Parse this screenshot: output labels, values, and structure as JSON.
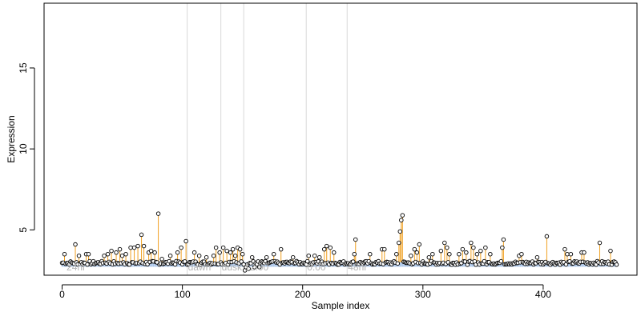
{
  "chart_data": {
    "type": "scatter",
    "title": "",
    "xlabel": "Sample index",
    "ylabel": "Expression",
    "xlim": [
      -15,
      478
    ],
    "ylim": [
      2.2,
      19
    ],
    "x_ticks": [
      0,
      100,
      200,
      300,
      400
    ],
    "y_ticks": [
      5,
      10,
      15
    ],
    "grid": false,
    "colors": {
      "baseline": "#a8c4e8",
      "stem": "#f0a020",
      "point_fill": "#ffffff",
      "point_edge": "#000000",
      "marker_line": "#d9d9d9"
    },
    "baseline_value": 3.0,
    "markers": [
      {
        "x": 3,
        "label": "24hr",
        "line": false
      },
      {
        "x": 104,
        "label": "dawn",
        "line": true
      },
      {
        "x": 132,
        "label": "dusk",
        "line": true
      },
      {
        "x": 151,
        "label": "12:00",
        "line": true
      },
      {
        "x": 203,
        "label": "0:00",
        "line": true
      },
      {
        "x": 237,
        "label": "48hr",
        "line": true
      }
    ],
    "highlights": [
      {
        "x": 2,
        "y": 3.5
      },
      {
        "x": 11,
        "y": 4.1
      },
      {
        "x": 14,
        "y": 3.4
      },
      {
        "x": 20,
        "y": 3.5
      },
      {
        "x": 22,
        "y": 3.5
      },
      {
        "x": 35,
        "y": 3.4
      },
      {
        "x": 38,
        "y": 3.5
      },
      {
        "x": 41,
        "y": 3.7
      },
      {
        "x": 45,
        "y": 3.6
      },
      {
        "x": 48,
        "y": 3.8
      },
      {
        "x": 50,
        "y": 3.4
      },
      {
        "x": 53,
        "y": 3.5
      },
      {
        "x": 57,
        "y": 3.9
      },
      {
        "x": 60,
        "y": 3.9
      },
      {
        "x": 63,
        "y": 4.0
      },
      {
        "x": 66,
        "y": 4.7
      },
      {
        "x": 68,
        "y": 4.0
      },
      {
        "x": 72,
        "y": 3.6
      },
      {
        "x": 74,
        "y": 3.7
      },
      {
        "x": 77,
        "y": 3.6
      },
      {
        "x": 80,
        "y": 6.0
      },
      {
        "x": 83,
        "y": 3.2
      },
      {
        "x": 90,
        "y": 3.4
      },
      {
        "x": 96,
        "y": 3.6
      },
      {
        "x": 99,
        "y": 3.9
      },
      {
        "x": 103,
        "y": 4.3
      },
      {
        "x": 110,
        "y": 3.6
      },
      {
        "x": 114,
        "y": 3.4
      },
      {
        "x": 120,
        "y": 3.3
      },
      {
        "x": 126,
        "y": 3.4
      },
      {
        "x": 128,
        "y": 3.9
      },
      {
        "x": 131,
        "y": 3.6
      },
      {
        "x": 134,
        "y": 3.9
      },
      {
        "x": 137,
        "y": 3.7
      },
      {
        "x": 140,
        "y": 3.6
      },
      {
        "x": 142,
        "y": 3.8
      },
      {
        "x": 144,
        "y": 3.4
      },
      {
        "x": 146,
        "y": 3.9
      },
      {
        "x": 148,
        "y": 3.8
      },
      {
        "x": 150,
        "y": 3.5
      },
      {
        "x": 158,
        "y": 3.3
      },
      {
        "x": 170,
        "y": 3.3
      },
      {
        "x": 176,
        "y": 3.5
      },
      {
        "x": 182,
        "y": 3.8
      },
      {
        "x": 192,
        "y": 3.3
      },
      {
        "x": 205,
        "y": 3.4
      },
      {
        "x": 210,
        "y": 3.4
      },
      {
        "x": 214,
        "y": 3.3
      },
      {
        "x": 218,
        "y": 3.8
      },
      {
        "x": 220,
        "y": 4.0
      },
      {
        "x": 223,
        "y": 3.9
      },
      {
        "x": 226,
        "y": 3.6
      },
      {
        "x": 243,
        "y": 3.5
      },
      {
        "x": 244,
        "y": 4.4
      },
      {
        "x": 256,
        "y": 3.5
      },
      {
        "x": 266,
        "y": 3.8
      },
      {
        "x": 268,
        "y": 3.8
      },
      {
        "x": 278,
        "y": 3.5
      },
      {
        "x": 280,
        "y": 4.2
      },
      {
        "x": 281,
        "y": 4.9
      },
      {
        "x": 282,
        "y": 5.6
      },
      {
        "x": 283,
        "y": 5.9
      },
      {
        "x": 290,
        "y": 3.4
      },
      {
        "x": 293,
        "y": 3.8
      },
      {
        "x": 295,
        "y": 3.6
      },
      {
        "x": 297,
        "y": 4.1
      },
      {
        "x": 305,
        "y": 3.3
      },
      {
        "x": 308,
        "y": 3.5
      },
      {
        "x": 315,
        "y": 3.7
      },
      {
        "x": 318,
        "y": 4.2
      },
      {
        "x": 320,
        "y": 3.9
      },
      {
        "x": 322,
        "y": 3.5
      },
      {
        "x": 330,
        "y": 3.5
      },
      {
        "x": 333,
        "y": 3.8
      },
      {
        "x": 336,
        "y": 3.6
      },
      {
        "x": 340,
        "y": 4.2
      },
      {
        "x": 342,
        "y": 3.9
      },
      {
        "x": 345,
        "y": 3.5
      },
      {
        "x": 348,
        "y": 3.7
      },
      {
        "x": 352,
        "y": 3.9
      },
      {
        "x": 356,
        "y": 3.5
      },
      {
        "x": 366,
        "y": 3.9
      },
      {
        "x": 367,
        "y": 4.4
      },
      {
        "x": 380,
        "y": 3.4
      },
      {
        "x": 382,
        "y": 3.5
      },
      {
        "x": 395,
        "y": 3.3
      },
      {
        "x": 403,
        "y": 4.6
      },
      {
        "x": 418,
        "y": 3.8
      },
      {
        "x": 420,
        "y": 3.5
      },
      {
        "x": 423,
        "y": 3.5
      },
      {
        "x": 432,
        "y": 3.6
      },
      {
        "x": 434,
        "y": 3.6
      },
      {
        "x": 447,
        "y": 4.2
      },
      {
        "x": 456,
        "y": 3.7
      }
    ],
    "low_points": [
      {
        "x": 152,
        "y": 2.5
      },
      {
        "x": 153,
        "y": 2.7
      },
      {
        "x": 155,
        "y": 2.6
      },
      {
        "x": 160,
        "y": 2.7
      },
      {
        "x": 164,
        "y": 2.7
      }
    ],
    "n_points": 462
  }
}
